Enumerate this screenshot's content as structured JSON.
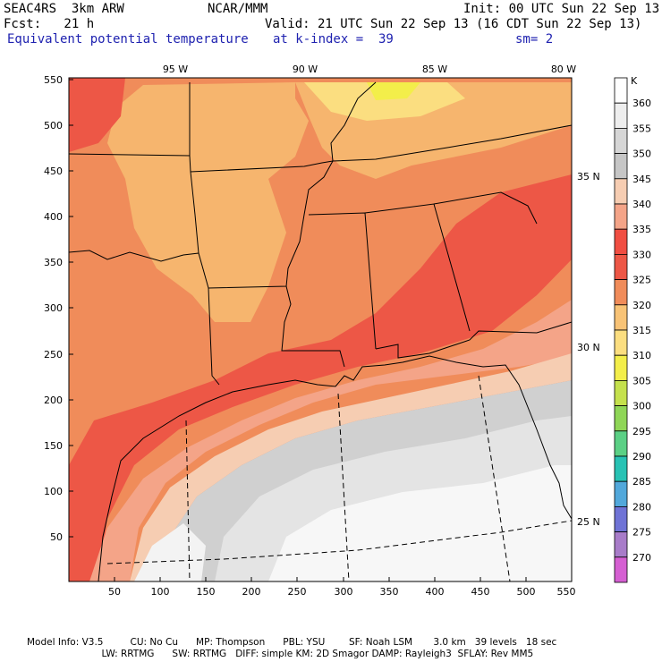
{
  "header": {
    "model": "SEAC4RS  3km ARW",
    "org": "NCAR/MMM",
    "init": "Init: 00 UTC Sun 22 Sep 13",
    "fcst": "Fcst:   21 h",
    "valid": "Valid: 21 UTC Sun 22 Sep 13 (16 CDT Sun 22 Sep 13)",
    "field": "Equivalent potential temperature",
    "level": "at k-index =  39",
    "smooth": "sm= 2"
  },
  "map": {
    "lon_labels": [
      "95 W",
      "90 W",
      "85 W",
      "80 W"
    ],
    "lat_labels": [
      "35 N",
      "30 N",
      "25 N"
    ],
    "x_ticks": [
      "50",
      "100",
      "150",
      "200",
      "250",
      "300",
      "350",
      "400",
      "450",
      "500",
      "550"
    ],
    "y_ticks": [
      "550",
      "500",
      "450",
      "400",
      "350",
      "300",
      "250",
      "200",
      "150",
      "100",
      "50"
    ]
  },
  "colorbar": {
    "unit": "K",
    "levels": [
      {
        "label": "360",
        "color": "#ffffff"
      },
      {
        "label": "355",
        "color": "#eeeeee"
      },
      {
        "label": "350",
        "color": "#d6d6d6"
      },
      {
        "label": "345",
        "color": "#c6c6c6"
      },
      {
        "label": "340",
        "color": "#f6cdb2"
      },
      {
        "label": "335",
        "color": "#f4a488"
      },
      {
        "label": "330",
        "color": "#f04e42"
      },
      {
        "label": "325",
        "color": "#ed5746"
      },
      {
        "label": "320",
        "color": "#f08c5a"
      },
      {
        "label": "315",
        "color": "#f8c376"
      },
      {
        "label": "310",
        "color": "#fbde80"
      },
      {
        "label": "305",
        "color": "#f3ee4a"
      },
      {
        "label": "300",
        "color": "#c5e14d"
      },
      {
        "label": "295",
        "color": "#8fd657"
      },
      {
        "label": "290",
        "color": "#5bd085"
      },
      {
        "label": "285",
        "color": "#28c2b4"
      },
      {
        "label": "280",
        "color": "#52a8db"
      },
      {
        "label": "275",
        "color": "#6f73d6"
      },
      {
        "label": "270",
        "color": "#a87cc9"
      },
      {
        "label": "",
        "color": "#d55fd2"
      }
    ]
  },
  "footer": {
    "line1": "Model Info: V3.5         CU: No Cu      MP: Thompson      PBL: YSU        SF: Noah LSM       3.0 km   39 levels   18 sec",
    "line2": "                         LW: RRTMG      SW: RRTMG   DIFF: simple KM: 2D Smagor DAMP: Rayleigh3  SFLAY: Rev MM5"
  }
}
